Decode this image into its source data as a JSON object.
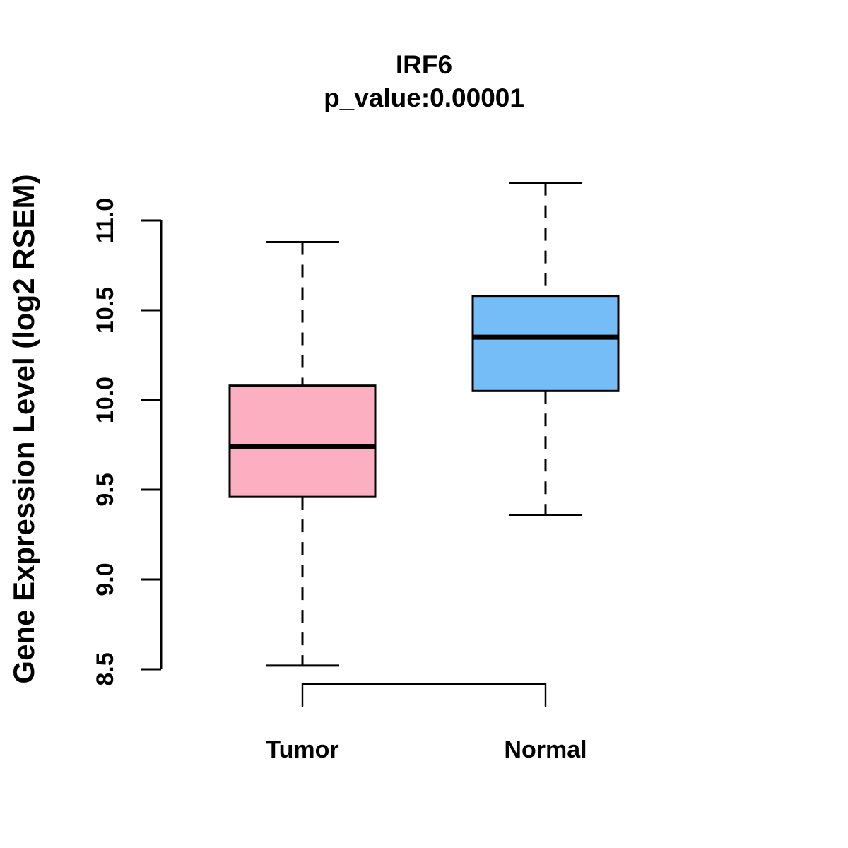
{
  "chart_data": {
    "type": "boxplot",
    "title": "IRF6",
    "subtitle": "p_value:0.00001",
    "ylabel": "Gene Expression Level (log2 RSEM)",
    "xlabel": "",
    "ylim": [
      8.5,
      11.0
    ],
    "ytick_values": [
      8.5,
      9.0,
      9.5,
      10.0,
      10.5,
      11.0
    ],
    "ytick_labels": [
      "8.5",
      "9.0",
      "9.5",
      "10.0",
      "10.5",
      "11.0"
    ],
    "categories": [
      "Tumor",
      "Normal"
    ],
    "series": [
      {
        "name": "Tumor",
        "fill": "#FCAFC0",
        "lower_whisker": 8.52,
        "q1": 9.46,
        "median": 9.74,
        "q3": 10.08,
        "upper_whisker": 10.88
      },
      {
        "name": "Normal",
        "fill": "#74BDF7",
        "lower_whisker": 9.36,
        "q1": 10.05,
        "median": 10.35,
        "q3": 10.58,
        "upper_whisker": 11.21
      }
    ],
    "grid": false,
    "legend": "none",
    "line_color": "#000000",
    "background_color": "#FFFFFF"
  }
}
